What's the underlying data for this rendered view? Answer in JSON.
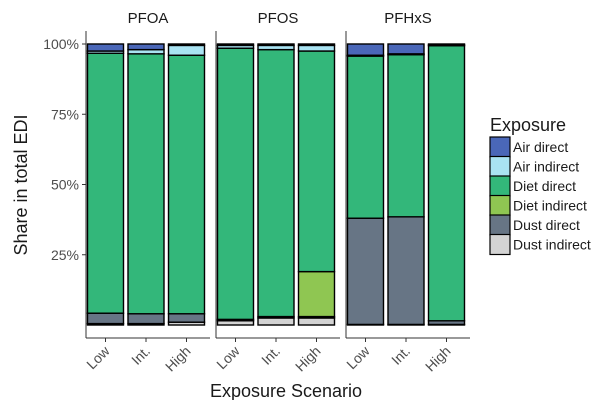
{
  "chart_data": {
    "type": "bar",
    "stacked": true,
    "xlabel": "Exposure Scenario",
    "ylabel": "Share in total EDI",
    "ylim": [
      0,
      100
    ],
    "yticks": [
      "25%",
      "50%",
      "75%",
      "100%"
    ],
    "ytick_values": [
      25,
      50,
      75,
      100
    ],
    "categories": [
      "Low",
      "Int.",
      "High"
    ],
    "legend": {
      "title": "Exposure",
      "placement": "right"
    },
    "series": [
      {
        "name": "Air direct",
        "color": "#4a67b8"
      },
      {
        "name": "Air indirect",
        "color": "#a9e3f2"
      },
      {
        "name": "Diet direct",
        "color": "#33b77a"
      },
      {
        "name": "Diet indirect",
        "color": "#8fc652"
      },
      {
        "name": "Dust direct",
        "color": "#677585"
      },
      {
        "name": "Dust indirect",
        "color": "#d3d3d3"
      }
    ],
    "panels": [
      {
        "title": "PFOA",
        "values": {
          "Air direct": [
            2.5,
            2.0,
            0.5
          ],
          "Air indirect": [
            0.8,
            1.5,
            3.5
          ],
          "Diet direct": [
            92.5,
            92.5,
            92.0
          ],
          "Diet indirect": [
            0.0,
            0.0,
            0.0
          ],
          "Dust direct": [
            3.7,
            3.5,
            3.0
          ],
          "Dust indirect": [
            0.5,
            0.5,
            1.0
          ]
        }
      },
      {
        "title": "PFOS",
        "values": {
          "Air direct": [
            0.5,
            0.5,
            0.5
          ],
          "Air indirect": [
            1.0,
            1.5,
            2.0
          ],
          "Diet direct": [
            96.5,
            95.0,
            78.5
          ],
          "Diet indirect": [
            0.0,
            0.0,
            16.0
          ],
          "Dust direct": [
            0.5,
            0.5,
            0.5
          ],
          "Dust indirect": [
            1.5,
            2.5,
            2.5
          ]
        }
      },
      {
        "title": "PFHxS",
        "values": {
          "Air direct": [
            4.0,
            3.5,
            0.3
          ],
          "Air indirect": [
            0.3,
            0.3,
            0.3
          ],
          "Diet direct": [
            57.7,
            57.7,
            97.9
          ],
          "Diet indirect": [
            0.0,
            0.0,
            0.0
          ],
          "Dust direct": [
            37.8,
            38.3,
            1.3
          ],
          "Dust indirect": [
            0.2,
            0.2,
            0.2
          ]
        }
      }
    ]
  }
}
